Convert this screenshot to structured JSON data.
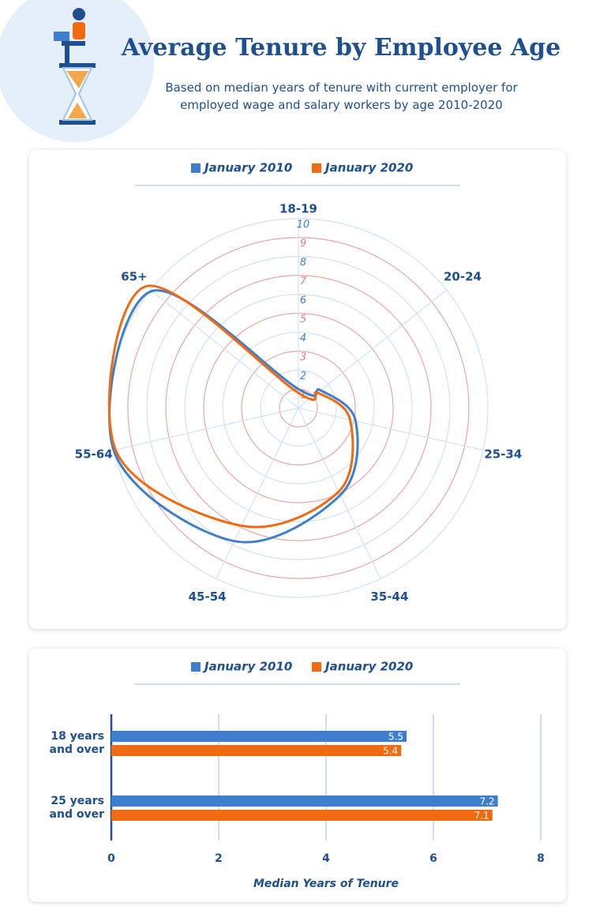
{
  "header": {
    "title": "Average Tenure by Employee Age",
    "subtitle": "Based on median years of tenure with current employer for employed wage and salary workers by age 2010-2020"
  },
  "chart_data": [
    {
      "type": "radar",
      "categories": [
        "18-19",
        "20-24",
        "25-34",
        "35-44",
        "45-54",
        "55-64",
        "65+"
      ],
      "series": [
        {
          "name": "January 2010",
          "color": "#3d7fcc",
          "values": [
            1.0,
            1.5,
            3.1,
            5.1,
            7.8,
            10.0,
            9.9
          ]
        },
        {
          "name": "January 2020",
          "color": "#f26a10",
          "values": [
            0.8,
            1.3,
            2.8,
            4.9,
            6.9,
            9.9,
            10.3
          ]
        }
      ],
      "ylim": [
        0,
        10
      ],
      "yticks": [
        1,
        2,
        3,
        4,
        5,
        6,
        7,
        8,
        9,
        10
      ],
      "grid": true
    },
    {
      "type": "hbar",
      "categories": [
        "18 years and over",
        "25 years and over"
      ],
      "series": [
        {
          "name": "January 2010",
          "color": "#3d7fcc",
          "values": [
            5.5,
            7.2
          ]
        },
        {
          "name": "January 2020",
          "color": "#f26a10",
          "values": [
            5.4,
            7.1
          ]
        }
      ],
      "x_label": "Median Years of Tenure",
      "xlim": [
        0,
        8
      ],
      "xticks": [
        0,
        2,
        4,
        6,
        8
      ],
      "grid": true
    }
  ]
}
